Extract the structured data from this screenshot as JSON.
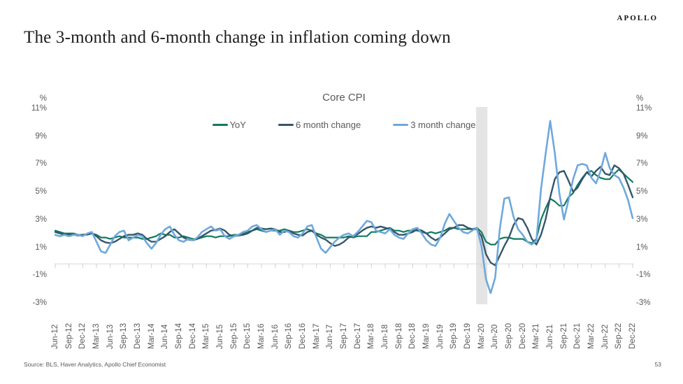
{
  "page": {
    "logo": "APOLLO",
    "title": "The 3-month and 6-month change in inflation coming down",
    "source": "Source: BLS, Haver Analytics, Apollo Chief Economist",
    "page_number": "53"
  },
  "colors": {
    "yoy_green": "#0e7b5f",
    "six_month_navy": "#34566b",
    "three_month_blue": "#6fa8dc",
    "recession_band_gray": "#e4e4e4",
    "axis_gray": "#d8d8d8",
    "label_gray": "#595959"
  },
  "chart_data": {
    "type": "line",
    "title": "Core CPI",
    "unit_label": "%",
    "frequency": "monthly",
    "x_start": "Jun-12",
    "x_end": "Dec-22",
    "grid": false,
    "legend_position": "top-center",
    "ylim": [
      -3,
      11
    ],
    "y_ticks": [
      "11%",
      "9%",
      "7%",
      "5%",
      "3%",
      "1%",
      "-1%",
      "-3%"
    ],
    "y_tick_values": [
      11,
      9,
      7,
      5,
      3,
      1,
      -1,
      -3
    ],
    "x_labels": [
      "Jun-12",
      "Sep-12",
      "Dec-12",
      "Mar-13",
      "Jun-13",
      "Sep-13",
      "Dec-13",
      "Mar-14",
      "Jun-14",
      "Sep-14",
      "Dec-14",
      "Mar-15",
      "Jun-15",
      "Sep-15",
      "Dec-15",
      "Mar-16",
      "Jun-16",
      "Sep-16",
      "Dec-16",
      "Mar-17",
      "Jun-17",
      "Sep-17",
      "Dec-17",
      "Mar-18",
      "Jun-18",
      "Sep-18",
      "Dec-18",
      "Mar-19",
      "Jun-19",
      "Sep-19",
      "Dec-19",
      "Mar-20",
      "Jun-20",
      "Sep-20",
      "Dec-20",
      "Mar-21",
      "Jun-21",
      "Sep-21",
      "Dec-21",
      "Mar-22",
      "Jun-22",
      "Sep-22",
      "Dec-22"
    ],
    "months_per_label": 3,
    "recession_band": {
      "start": "Feb-20",
      "end": "Apr-20",
      "start_month_index": 92,
      "end_month_index": 94,
      "color": "#e4e4e4"
    },
    "series": [
      {
        "name": "YoY",
        "color": "#0e7b5f",
        "values": [
          2.2,
          2.1,
          2.0,
          2.0,
          2.0,
          1.9,
          1.9,
          1.9,
          2.0,
          1.9,
          1.7,
          1.7,
          1.6,
          1.7,
          1.8,
          1.7,
          1.7,
          1.7,
          1.7,
          1.6,
          1.6,
          1.7,
          1.8,
          2.0,
          1.9,
          1.9,
          1.7,
          1.7,
          1.8,
          1.7,
          1.6,
          1.6,
          1.7,
          1.8,
          1.8,
          1.7,
          1.8,
          1.8,
          1.8,
          1.9,
          1.9,
          2.0,
          2.1,
          2.2,
          2.3,
          2.2,
          2.1,
          2.2,
          2.2,
          2.2,
          2.3,
          2.2,
          2.1,
          2.1,
          2.2,
          2.3,
          2.2,
          2.0,
          1.9,
          1.7,
          1.7,
          1.7,
          1.7,
          1.7,
          1.8,
          1.7,
          1.8,
          1.8,
          1.8,
          2.1,
          2.1,
          2.2,
          2.3,
          2.4,
          2.2,
          2.2,
          2.1,
          2.2,
          2.2,
          2.2,
          2.1,
          2.0,
          2.1,
          2.0,
          2.1,
          2.2,
          2.4,
          2.4,
          2.3,
          2.3,
          2.3,
          2.3,
          2.4,
          2.1,
          1.4,
          1.2,
          1.2,
          1.6,
          1.7,
          1.7,
          1.6,
          1.6,
          1.6,
          1.4,
          1.3,
          1.6,
          3.0,
          3.8,
          4.5,
          4.3,
          4.0,
          4.0,
          4.6,
          4.9,
          5.5,
          6.0,
          6.4,
          6.5,
          6.2,
          6.0,
          5.9,
          5.9,
          6.3,
          6.6,
          6.3,
          6.0,
          5.7
        ]
      },
      {
        "name": "6 month change",
        "color": "#34566b",
        "values": [
          2.1,
          2.0,
          1.9,
          1.9,
          1.9,
          1.85,
          1.9,
          1.95,
          2.0,
          1.8,
          1.5,
          1.35,
          1.3,
          1.4,
          1.6,
          1.8,
          1.9,
          1.9,
          2.0,
          1.9,
          1.6,
          1.4,
          1.4,
          1.6,
          1.8,
          2.1,
          2.3,
          2.0,
          1.7,
          1.55,
          1.5,
          1.6,
          1.8,
          2.0,
          2.2,
          2.25,
          2.35,
          2.2,
          1.9,
          1.8,
          1.85,
          1.9,
          2.0,
          2.2,
          2.4,
          2.35,
          2.3,
          2.35,
          2.3,
          2.1,
          2.1,
          2.2,
          2.0,
          1.9,
          1.85,
          2.1,
          2.2,
          1.9,
          1.7,
          1.55,
          1.3,
          1.1,
          1.2,
          1.4,
          1.7,
          1.8,
          1.95,
          2.2,
          2.4,
          2.5,
          2.4,
          2.5,
          2.4,
          2.3,
          2.1,
          1.9,
          1.9,
          2.0,
          2.1,
          2.3,
          2.2,
          2.0,
          1.7,
          1.5,
          1.7,
          2.0,
          2.3,
          2.4,
          2.6,
          2.6,
          2.4,
          2.3,
          2.3,
          1.8,
          0.5,
          -0.1,
          -0.3,
          0.4,
          1.1,
          1.7,
          2.6,
          3.1,
          3.0,
          2.4,
          1.6,
          1.2,
          1.9,
          3.0,
          4.6,
          5.9,
          6.4,
          6.5,
          5.8,
          5.0,
          5.3,
          5.9,
          6.4,
          6.1,
          6.5,
          6.8,
          6.3,
          6.2,
          6.9,
          6.7,
          6.3,
          5.5,
          4.6
        ]
      },
      {
        "name": "3 month change",
        "color": "#6fa8dc",
        "values": [
          1.9,
          1.8,
          1.9,
          1.8,
          1.9,
          1.9,
          1.8,
          2.0,
          2.1,
          1.4,
          0.7,
          0.6,
          1.2,
          1.8,
          2.1,
          2.2,
          1.5,
          1.7,
          1.9,
          1.8,
          1.3,
          0.9,
          1.3,
          1.9,
          2.3,
          2.5,
          1.9,
          1.5,
          1.4,
          1.6,
          1.5,
          1.7,
          2.1,
          2.3,
          2.5,
          2.2,
          2.3,
          1.8,
          1.6,
          1.8,
          1.9,
          2.1,
          2.2,
          2.5,
          2.6,
          2.3,
          2.1,
          2.2,
          2.3,
          1.9,
          2.2,
          2.1,
          1.8,
          1.7,
          2.0,
          2.5,
          2.6,
          1.7,
          0.9,
          0.6,
          1.0,
          1.4,
          1.7,
          1.9,
          2.0,
          1.8,
          2.1,
          2.5,
          2.9,
          2.8,
          2.2,
          2.1,
          2.0,
          2.3,
          1.9,
          1.7,
          1.6,
          2.0,
          2.3,
          2.4,
          2.0,
          1.5,
          1.2,
          1.1,
          1.7,
          2.7,
          3.4,
          2.9,
          2.4,
          2.1,
          2.0,
          2.2,
          2.4,
          1.1,
          -1.3,
          -2.3,
          -1.2,
          2.3,
          4.5,
          4.6,
          3.2,
          2.3,
          1.9,
          1.4,
          1.2,
          1.5,
          5.2,
          7.7,
          10.1,
          7.8,
          4.9,
          3.0,
          4.4,
          5.9,
          6.9,
          7.0,
          6.9,
          6.0,
          5.6,
          6.5,
          7.8,
          6.7,
          6.2,
          6.0,
          5.3,
          4.4,
          3.1
        ]
      }
    ]
  }
}
